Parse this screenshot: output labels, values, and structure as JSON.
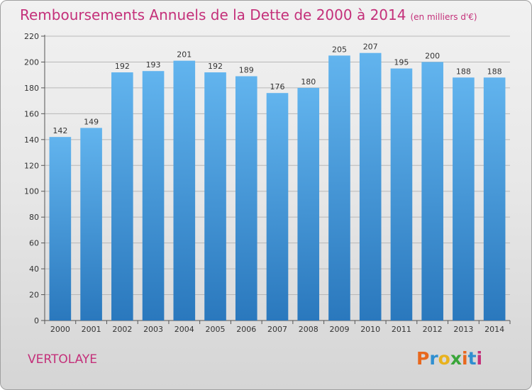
{
  "title": "Remboursements Annuels de la Dette de 2000 à 2014",
  "title_unit": "(en milliers d'€)",
  "commune": "VERTOLAYE",
  "logo": {
    "letters": [
      "P",
      "r",
      "o",
      "x",
      "i",
      "t",
      "i"
    ],
    "colors": [
      "#e8681e",
      "#2f8fd0",
      "#e8b21e",
      "#3aa63a",
      "#e8681e",
      "#2f8fd0",
      "#c4307a"
    ]
  },
  "colors": {
    "bar_top": "#62b4ee",
    "bar_bottom": "#2a78bd",
    "title": "#c4307a",
    "grid": "#b8b8b8"
  },
  "chart_data": {
    "type": "bar",
    "title": "Remboursements Annuels de la Dette de 2000 à 2014",
    "xlabel": "",
    "ylabel": "",
    "categories": [
      "2000",
      "2001",
      "2002",
      "2003",
      "2004",
      "2005",
      "2006",
      "2007",
      "2008",
      "2009",
      "2010",
      "2011",
      "2012",
      "2013",
      "2014"
    ],
    "values": [
      142,
      149,
      192,
      193,
      201,
      192,
      189,
      176,
      180,
      205,
      207,
      195,
      200,
      188,
      188
    ],
    "ylim": [
      0,
      220
    ],
    "yticks": [
      0,
      20,
      40,
      60,
      80,
      100,
      120,
      140,
      160,
      180,
      200,
      220
    ],
    "grid": true,
    "data_labels": true
  }
}
